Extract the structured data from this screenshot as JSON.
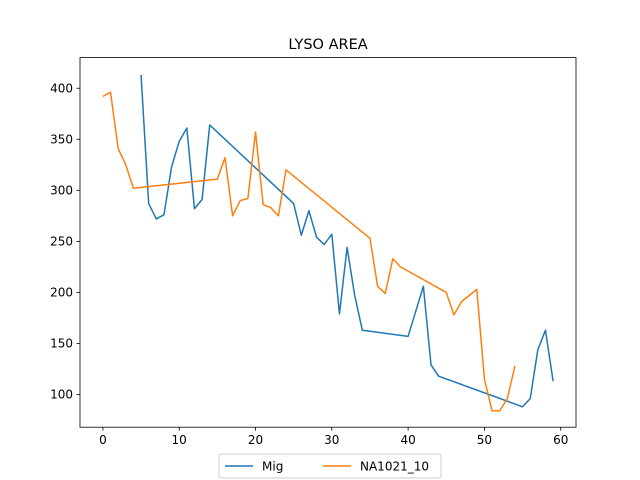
{
  "chart_data": {
    "type": "line",
    "title": "LYSO AREA",
    "xlabel": "",
    "ylabel": "",
    "xlim": [
      -3,
      62
    ],
    "ylim": [
      68,
      430
    ],
    "xticks": [
      0,
      10,
      20,
      30,
      40,
      50,
      60
    ],
    "yticks": [
      100,
      150,
      200,
      250,
      300,
      350,
      400
    ],
    "grid": false,
    "legend_position": "bottom-center",
    "series": [
      {
        "name": "Mig",
        "color": "#1f77b4",
        "points": [
          [
            5,
            413
          ],
          [
            6,
            287
          ],
          [
            7,
            272
          ],
          [
            8,
            276
          ],
          [
            9,
            323
          ],
          [
            10,
            348
          ],
          [
            11,
            361
          ],
          [
            12,
            282
          ],
          [
            13,
            291
          ],
          [
            14,
            364
          ],
          [
            25,
            287
          ],
          [
            26,
            256
          ],
          [
            27,
            280
          ],
          [
            28,
            254
          ],
          [
            29,
            247
          ],
          [
            30,
            257
          ],
          [
            31,
            179
          ],
          [
            32,
            244
          ],
          [
            33,
            197
          ],
          [
            34,
            163
          ],
          [
            40,
            157
          ],
          [
            42,
            206
          ],
          [
            43,
            129
          ],
          [
            44,
            118
          ],
          [
            55,
            88
          ],
          [
            56,
            96
          ],
          [
            57,
            144
          ],
          [
            58,
            163
          ],
          [
            59,
            113
          ]
        ]
      },
      {
        "name": "NA1021_10",
        "color": "#ff7f0e",
        "points": [
          [
            0,
            392
          ],
          [
            1,
            396
          ],
          [
            2,
            341
          ],
          [
            3,
            325
          ],
          [
            4,
            302
          ],
          [
            15,
            311
          ],
          [
            16,
            332
          ],
          [
            17,
            275
          ],
          [
            18,
            290
          ],
          [
            19,
            292
          ],
          [
            20,
            357
          ],
          [
            21,
            286
          ],
          [
            22,
            283
          ],
          [
            23,
            275
          ],
          [
            24,
            320
          ],
          [
            35,
            253
          ],
          [
            36,
            206
          ],
          [
            37,
            199
          ],
          [
            38,
            233
          ],
          [
            39,
            225
          ],
          [
            45,
            200
          ],
          [
            46,
            178
          ],
          [
            47,
            191
          ],
          [
            49,
            203
          ],
          [
            50,
            115
          ],
          [
            51,
            84
          ],
          [
            52,
            84
          ],
          [
            53,
            96
          ],
          [
            54,
            128
          ]
        ]
      }
    ]
  }
}
